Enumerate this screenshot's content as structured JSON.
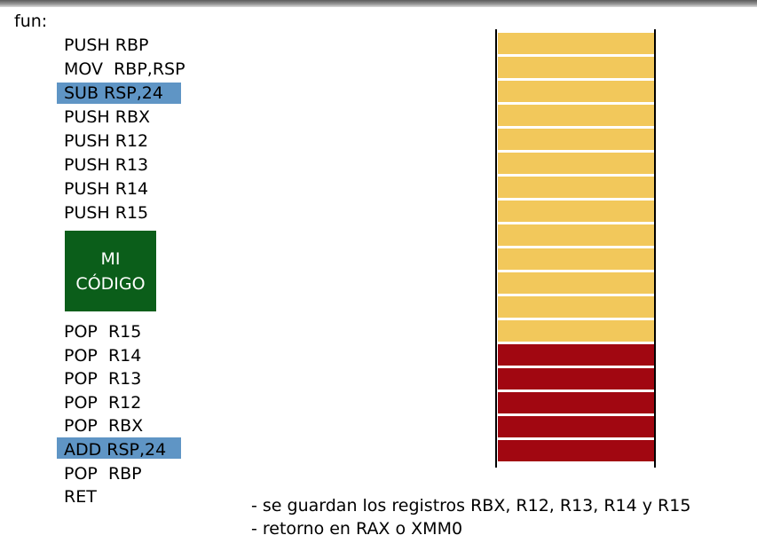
{
  "function_label": "fun:",
  "prologue": [
    "PUSH RBP",
    "MOV  RBP,RSP",
    "SUB RSP,24",
    "PUSH RBX",
    "PUSH R12",
    "PUSH R13",
    "PUSH R14",
    "PUSH R15"
  ],
  "my_code": {
    "line1": "MI",
    "line2": "CÓDIGO",
    "color": "#0b5e1a"
  },
  "epilogue": [
    "POP  R15",
    "POP  R14",
    "POP  R13",
    "POP  R12",
    "POP  RBX",
    "ADD RSP,24",
    "POP  RBP",
    "RET"
  ],
  "highlight_color": "#5f95c5",
  "stack": {
    "saved_slots": 13,
    "reserved_slots": 5,
    "saved_color": "#f2c85b",
    "reserved_color": "#a10711"
  },
  "notes": [
    "- se guardan los registros RBX, R12, R13, R14 y R15",
    "- retorno en RAX o XMM0"
  ]
}
